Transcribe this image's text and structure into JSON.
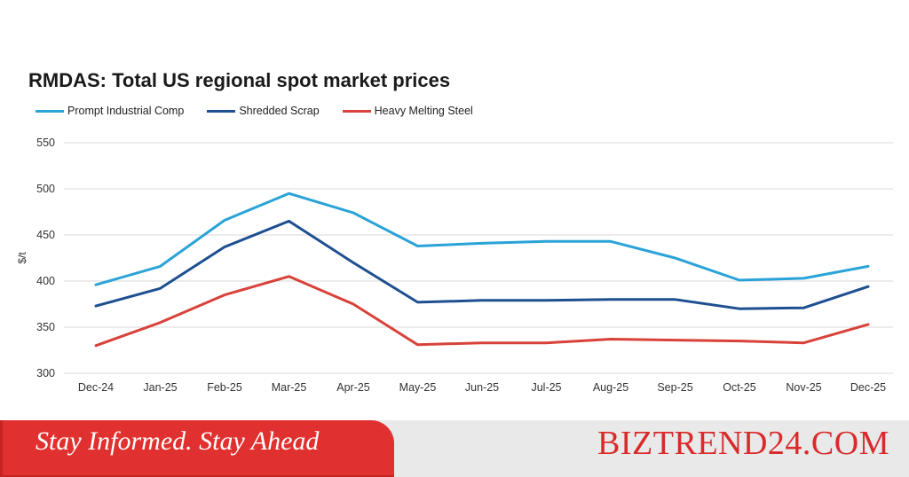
{
  "chart_data": {
    "type": "line",
    "title": "RMDAS: Total US regional spot market prices",
    "xlabel": "",
    "ylabel": "$/t",
    "categories": [
      "Dec-24",
      "Jan-25",
      "Feb-25",
      "Mar-25",
      "Apr-25",
      "May-25",
      "Jun-25",
      "Jul-25",
      "Aug-25",
      "Sep-25",
      "Oct-25",
      "Nov-25",
      "Dec-25"
    ],
    "series": [
      {
        "name": "Prompt Industrial Comp",
        "color": "#2aa3d8",
        "values": [
          396,
          416,
          466,
          495,
          474,
          438,
          441,
          443,
          443,
          425,
          401,
          403,
          416
        ]
      },
      {
        "name": "Shredded Scrap",
        "color": "#1d4f91",
        "values": [
          373,
          392,
          437,
          465,
          420,
          377,
          379,
          379,
          380,
          380,
          370,
          371,
          394
        ]
      },
      {
        "name": "Heavy Melting Steel",
        "color": "#d8423a",
        "values": [
          330,
          355,
          385,
          405,
          375,
          331,
          333,
          333,
          337,
          336,
          335,
          333,
          353
        ]
      }
    ],
    "ylim": [
      300,
      550
    ],
    "yticks": [
      300,
      350,
      400,
      450,
      500,
      550
    ],
    "grid": true,
    "legend": "top-left"
  },
  "footer": {
    "tagline": "Stay Informed. Stay Ahead",
    "brand": "BIZTREND24.COM"
  },
  "colors": {
    "banner": "#e0302f",
    "brand": "#d92b2b",
    "footer_bg": "#e9e9e9"
  }
}
